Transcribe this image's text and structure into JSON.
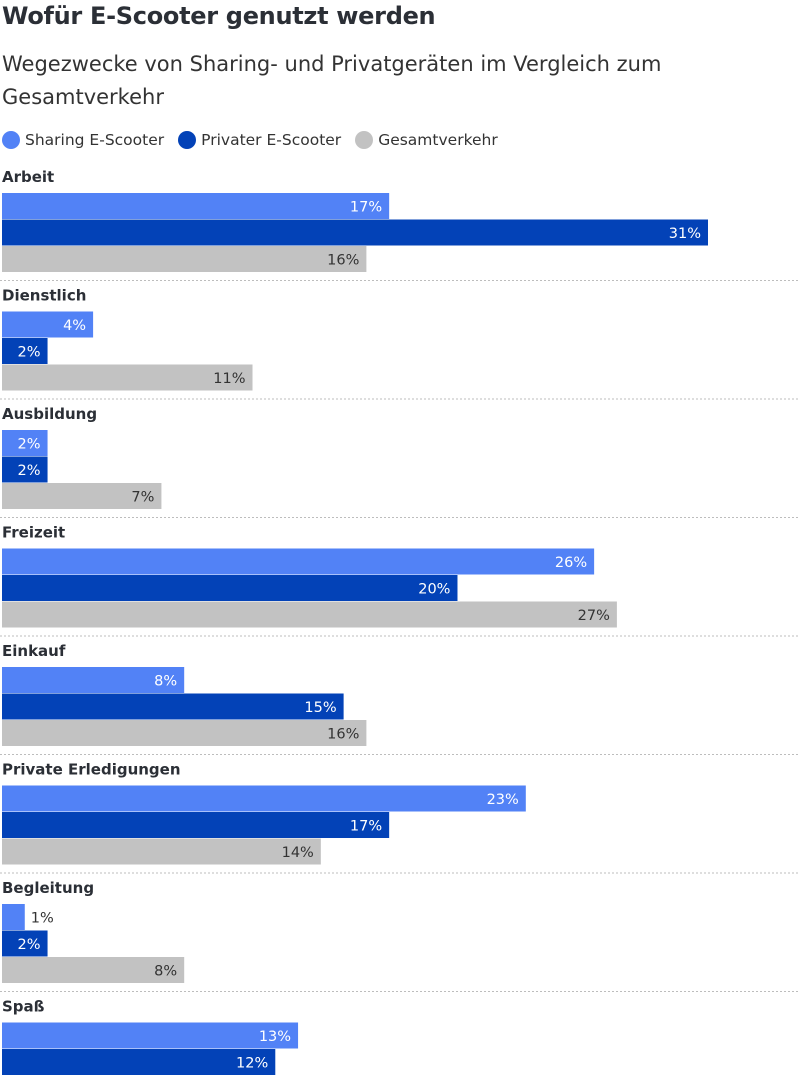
{
  "chart_data": {
    "type": "bar",
    "orientation": "horizontal",
    "title": "Wofür E-Scooter genutzt werden",
    "subtitle": "Wegezwecke von Sharing- und Privatgeräten im Vergleich zum Gesamtverkehr",
    "categories": [
      "Arbeit",
      "Dienstlich",
      "Ausbildung",
      "Freizeit",
      "Einkauf",
      "Private Erledigungen",
      "Begleitung",
      "Spaß"
    ],
    "series": [
      {
        "name": "Sharing E-Scooter",
        "color": "#5282f6",
        "values": [
          17,
          4,
          2,
          26,
          8,
          23,
          1,
          13
        ]
      },
      {
        "name": "Privater E-Scooter",
        "color": "#0342b7",
        "values": [
          31,
          2,
          2,
          20,
          15,
          17,
          2,
          12
        ]
      },
      {
        "name": "Gesamtverkehr",
        "color": "#c2c2c2",
        "values": [
          16,
          11,
          7,
          27,
          16,
          14,
          8,
          null
        ]
      }
    ],
    "value_suffix": "%",
    "xlim": [
      0,
      35
    ],
    "xlabel": "",
    "ylabel": "",
    "legend_position": "top-left",
    "grid": false
  }
}
